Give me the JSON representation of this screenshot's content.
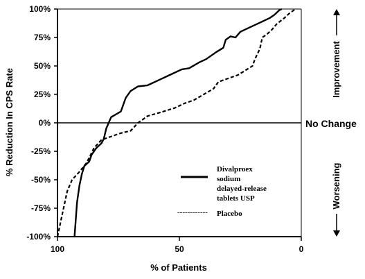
{
  "chart_data": {
    "type": "line",
    "xlabel": "% of Patients",
    "ylabel": "% Reduction In CPS Rate",
    "xlim": [
      100,
      0
    ],
    "ylim": [
      -100,
      100
    ],
    "x_ticks": [
      "100",
      "50",
      "0"
    ],
    "y_ticks": [
      "100%",
      "75%",
      "50%",
      "25%",
      "0%",
      "-25%",
      "-50%",
      "-75%",
      "-100%"
    ],
    "reference_line": {
      "y": 0,
      "label": "No Change"
    },
    "side_labels": {
      "top": "Improvement",
      "bottom": "Worsening"
    },
    "legend_position": "lower-right",
    "series": [
      {
        "name": "Divalproex sodium delayed-release tablets USP",
        "style": "solid",
        "color": "#000000",
        "points": [
          [
            93,
            -100
          ],
          [
            92,
            -70
          ],
          [
            91,
            -55
          ],
          [
            90,
            -45
          ],
          [
            89,
            -38
          ],
          [
            87,
            -34
          ],
          [
            86,
            -28
          ],
          [
            84,
            -22
          ],
          [
            82,
            -18
          ],
          [
            81,
            -14
          ],
          [
            80,
            -5
          ],
          [
            79,
            0
          ],
          [
            78,
            5
          ],
          [
            74,
            10
          ],
          [
            72,
            22
          ],
          [
            70,
            28
          ],
          [
            67,
            32
          ],
          [
            63,
            33
          ],
          [
            58,
            38
          ],
          [
            53,
            43
          ],
          [
            49,
            47
          ],
          [
            46,
            48
          ],
          [
            42,
            53
          ],
          [
            39,
            56
          ],
          [
            35,
            62
          ],
          [
            32,
            66
          ],
          [
            31,
            73
          ],
          [
            29,
            76
          ],
          [
            27,
            75
          ],
          [
            25,
            80
          ],
          [
            21,
            84
          ],
          [
            17,
            88
          ],
          [
            13,
            92
          ],
          [
            11,
            95
          ],
          [
            9,
            99
          ],
          [
            8,
            100
          ]
        ]
      },
      {
        "name": "Placebo",
        "style": "dashed",
        "color": "#000000",
        "points": [
          [
            100,
            -100
          ],
          [
            98,
            -80
          ],
          [
            96,
            -60
          ],
          [
            94,
            -50
          ],
          [
            91,
            -43
          ],
          [
            88,
            -35
          ],
          [
            85,
            -22
          ],
          [
            82,
            -15
          ],
          [
            78,
            -12
          ],
          [
            74,
            -9
          ],
          [
            70,
            -7
          ],
          [
            67,
            0
          ],
          [
            63,
            6
          ],
          [
            58,
            9
          ],
          [
            52,
            13
          ],
          [
            48,
            17
          ],
          [
            44,
            20
          ],
          [
            40,
            25
          ],
          [
            36,
            30
          ],
          [
            34,
            36
          ],
          [
            30,
            39
          ],
          [
            26,
            42
          ],
          [
            23,
            46
          ],
          [
            20,
            50
          ],
          [
            19,
            56
          ],
          [
            17,
            65
          ],
          [
            16,
            75
          ],
          [
            14,
            78
          ],
          [
            12,
            82
          ],
          [
            10,
            87
          ],
          [
            7,
            92
          ],
          [
            5,
            96
          ],
          [
            3,
            99
          ],
          [
            2,
            100
          ]
        ]
      }
    ]
  },
  "legend": {
    "solid_label_lines": [
      "Divalproex",
      "sodium",
      "delayed-release",
      "tablets USP"
    ],
    "dash_glyph": "------------",
    "placebo_label": "Placebo"
  }
}
